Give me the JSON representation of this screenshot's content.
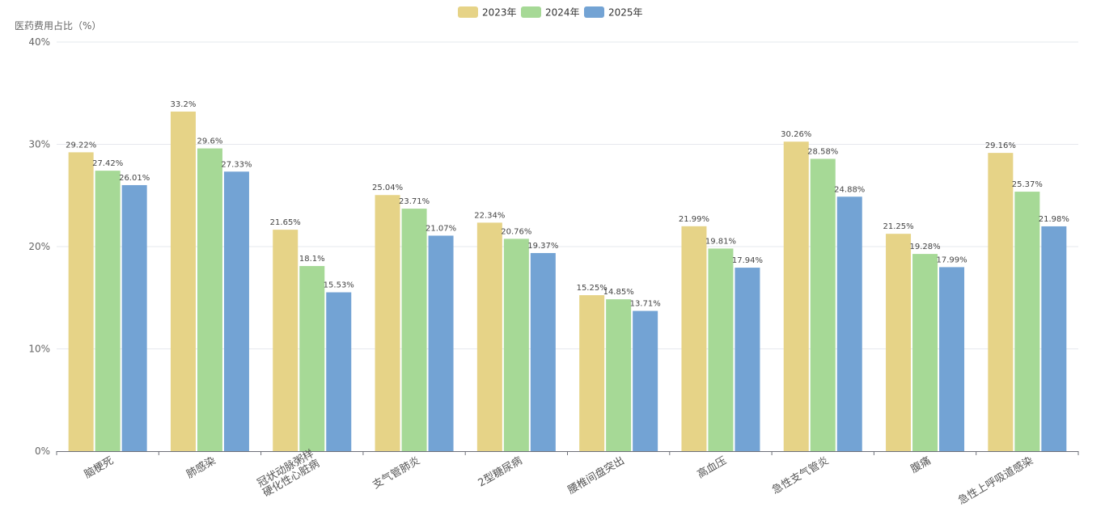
{
  "chart_data": {
    "type": "bar",
    "ylabel": "医药费用占比（%）",
    "ylim": [
      0,
      40
    ],
    "yticks": [
      0,
      10,
      20,
      30,
      40
    ],
    "ytick_labels": [
      "0%",
      "10%",
      "20%",
      "30%",
      "40%"
    ],
    "grid": true,
    "legend_position": "top-center",
    "categories": [
      "脑梗死",
      "肺感染",
      "冠状动脉粥样\n硬化性心脏病",
      "支气管肺炎",
      "2型糖尿病",
      "腰椎间盘突出",
      "高血压",
      "急性支气管炎",
      "腹痛",
      "急性上呼吸道感染"
    ],
    "series": [
      {
        "name": "2023年",
        "color": "#e6d387",
        "values": [
          29.22,
          33.2,
          21.65,
          25.04,
          22.34,
          15.25,
          21.99,
          30.26,
          21.25,
          29.16
        ],
        "labels": [
          "29.22%",
          "33.2%",
          "21.65%",
          "25.04%",
          "22.34%",
          "15.25%",
          "21.99%",
          "30.26%",
          "21.25%",
          "29.16%"
        ]
      },
      {
        "name": "2024年",
        "color": "#a6d996",
        "values": [
          27.42,
          29.6,
          18.1,
          23.71,
          20.76,
          14.85,
          19.81,
          28.58,
          19.28,
          25.37
        ],
        "labels": [
          "27.42%",
          "29.6%",
          "18.1%",
          "23.71%",
          "20.76%",
          "14.85%",
          "19.81%",
          "28.58%",
          "19.28%",
          "25.37%"
        ]
      },
      {
        "name": "2025年",
        "color": "#73a3d4",
        "values": [
          26.01,
          27.33,
          15.53,
          21.07,
          19.37,
          13.71,
          17.94,
          24.88,
          17.99,
          21.98
        ],
        "labels": [
          "26.01%",
          "27.33%",
          "15.53%",
          "21.07%",
          "19.37%",
          "13.71%",
          "17.94%",
          "24.88%",
          "17.99%",
          "21.98%"
        ]
      }
    ]
  }
}
